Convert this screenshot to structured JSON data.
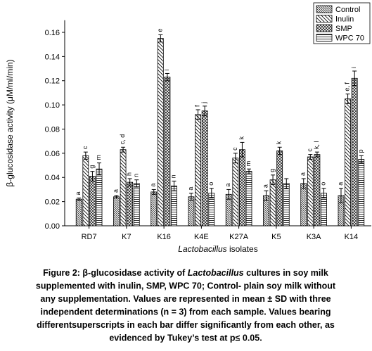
{
  "chart_data": {
    "type": "bar",
    "y_label": "β-glucosidase activity (μM/ml/min)",
    "x_label": [
      "Lactobacillus",
      " isolates"
    ],
    "categories": [
      "RD7",
      "K7",
      "K16",
      "K4E",
      "K27A",
      "K5",
      "K3A",
      "K14"
    ],
    "series": [
      {
        "name": "Control",
        "color": "#000000",
        "hatch": "dense-diagonal",
        "values": [
          0.022,
          0.024,
          0.028,
          0.024,
          0.026,
          0.025,
          0.035,
          0.025
        ],
        "errors": [
          0.001,
          0.001,
          0.002,
          0.003,
          0.004,
          0.004,
          0.004,
          0.006
        ],
        "letters": [
          "a",
          "a",
          "a",
          "a",
          "a",
          "a",
          "a",
          "a"
        ]
      },
      {
        "name": "Inulin",
        "color": "#000000",
        "hatch": "diagonal",
        "values": [
          0.058,
          0.063,
          0.155,
          0.092,
          0.056,
          0.038,
          0.057,
          0.105
        ],
        "errors": [
          0.003,
          0.002,
          0.003,
          0.004,
          0.004,
          0.004,
          0.002,
          0.004
        ],
        "letters": [
          "c",
          "c, d",
          "e",
          "f",
          "c",
          "g",
          "c",
          "e, f"
        ]
      },
      {
        "name": "SMP",
        "color": "#000000",
        "hatch": "crosshatch",
        "values": [
          0.041,
          0.036,
          0.123,
          0.095,
          0.063,
          0.062,
          0.059,
          0.122
        ],
        "errors": [
          0.004,
          0.003,
          0.003,
          0.004,
          0.006,
          0.003,
          0.002,
          0.006
        ],
        "letters": [
          "g",
          "h",
          "i",
          "j",
          "k",
          "k",
          "k, l",
          "i"
        ]
      },
      {
        "name": "WPC 70",
        "color": "#000000",
        "hatch": "horizontal",
        "values": [
          0.047,
          0.035,
          0.033,
          0.027,
          0.045,
          0.035,
          0.027,
          0.055
        ],
        "errors": [
          0.005,
          0.003,
          0.004,
          0.004,
          0.002,
          0.004,
          0.004,
          0.003
        ],
        "letters": [
          "m",
          "n",
          "n",
          "o",
          "m",
          null,
          "o",
          "p"
        ]
      }
    ],
    "ylim": [
      0,
      0.17
    ],
    "yticks": [
      {
        "value": 0,
        "label": "0.00"
      },
      {
        "value": 0.02,
        "label": "0.02"
      },
      {
        "value": 0.04,
        "label": "0.04"
      },
      {
        "value": 0.06,
        "label": "0.06"
      },
      {
        "value": 0.08,
        "label": "0.08"
      },
      {
        "value": 0.1,
        "label": "0.10"
      },
      {
        "value": 0.12,
        "label": "0.12"
      },
      {
        "value": 0.14,
        "label": "0.14"
      },
      {
        "value": 0.16,
        "label": "0.16"
      }
    ],
    "legend": "upper right",
    "caption": [
      [
        "Figure 2:  β-glucosidase activity of ",
        "Lactobacillus",
        " cultures in soy milk"
      ],
      [
        "supplemented with inulin, SMP, WPC 70; Control- plain soy milk without"
      ],
      [
        "any supplementation. Values are represented in mean ± SD with three"
      ],
      [
        "independent determinations (n = 3) from each sample. Values bearing"
      ],
      [
        "differentsuperscripts in each bar differ significantly from each other, as"
      ],
      [
        "evidenced by Tukey’s test at p≤ 0.05."
      ]
    ]
  }
}
